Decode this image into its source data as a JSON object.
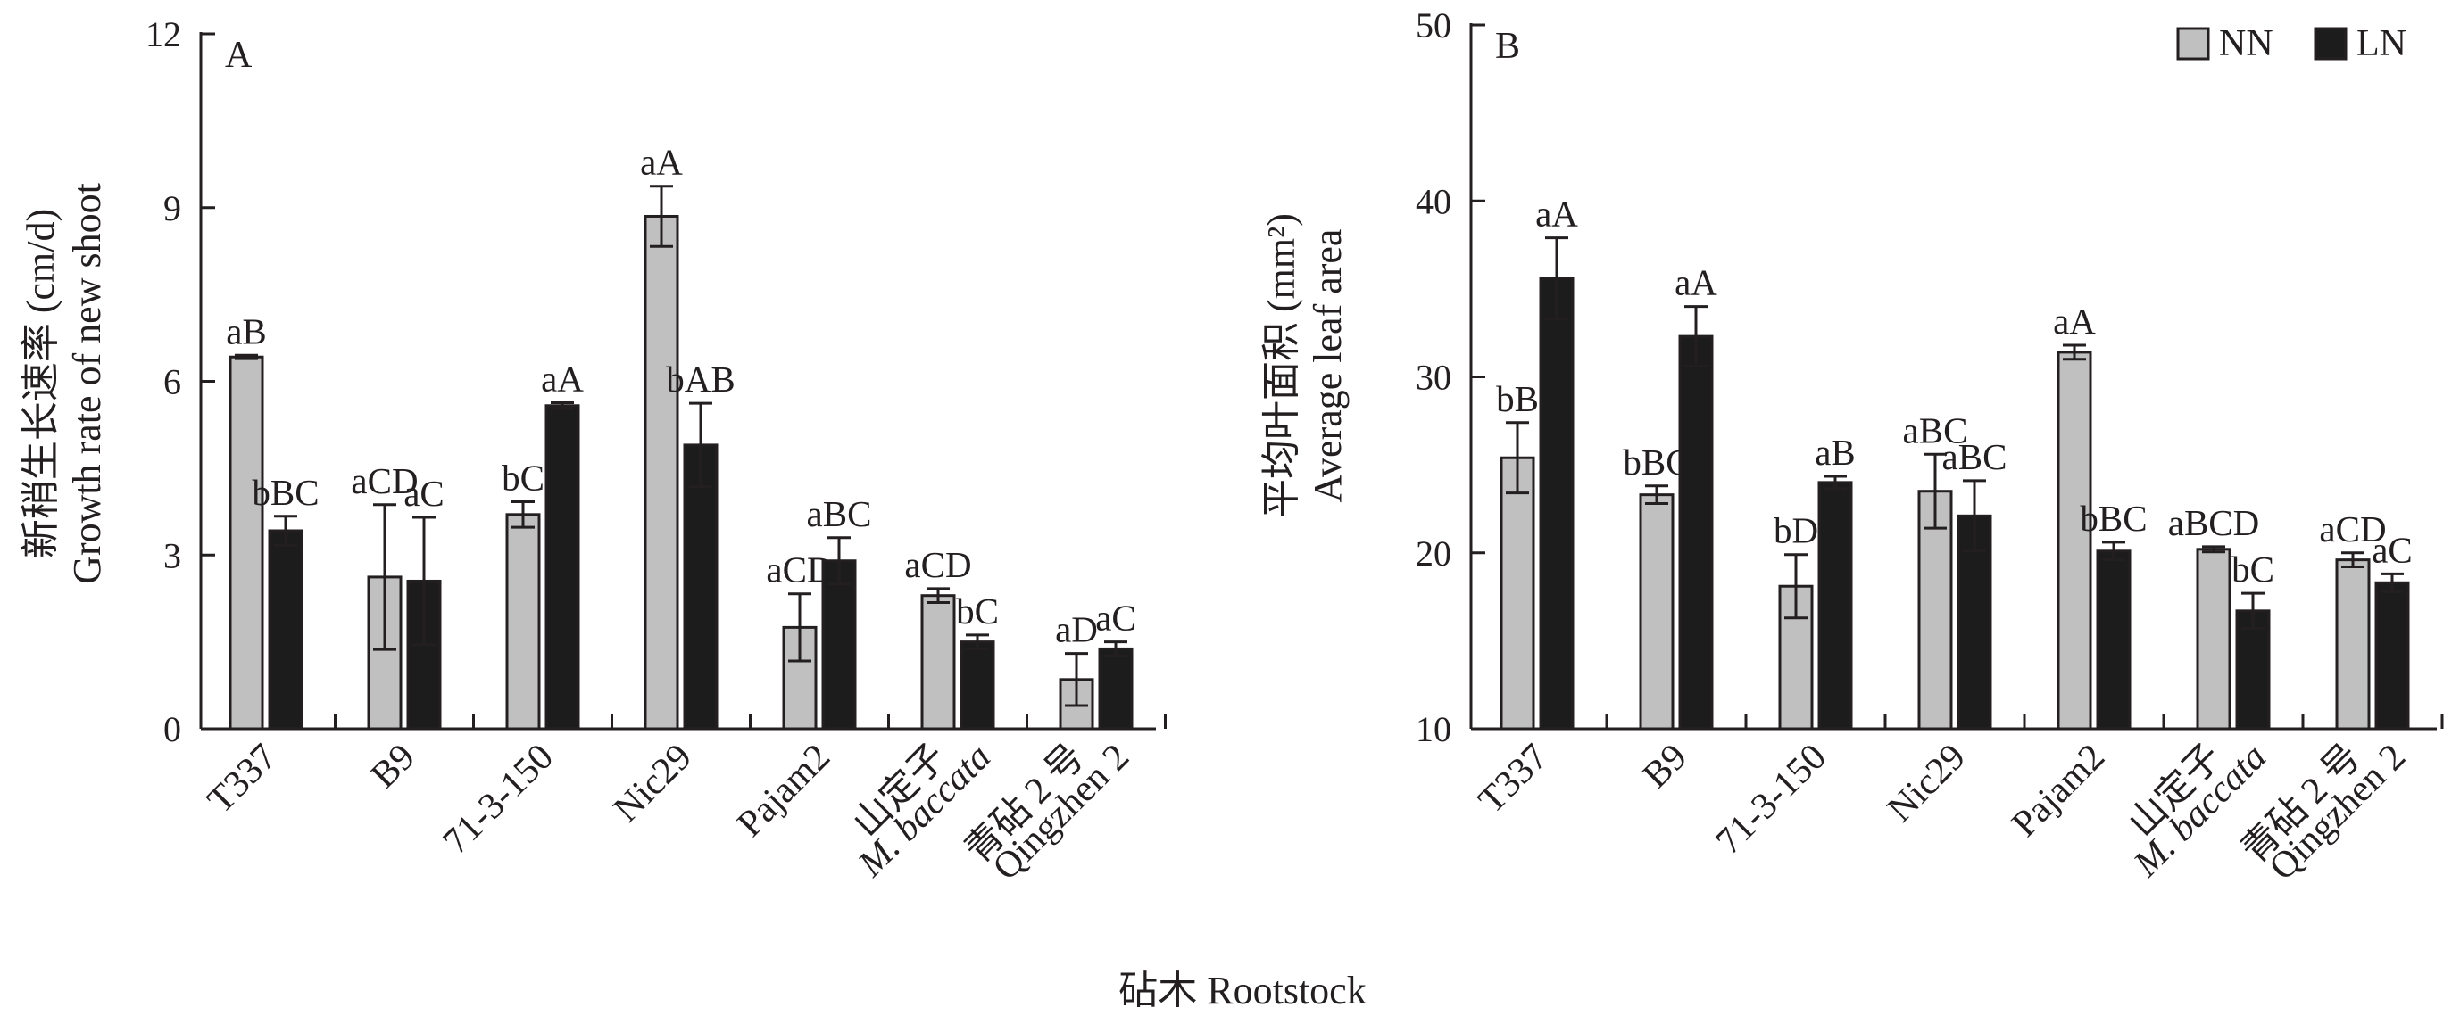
{
  "figure": {
    "xlabel": "砧木 Rootstock",
    "legend": {
      "placement": "top-right",
      "entries": [
        {
          "label": "NN",
          "color": "#c0c0c0"
        },
        {
          "label": "LN",
          "color": "#1c1c1c"
        }
      ]
    },
    "colors": {
      "NN": "#c0c0c0",
      "LN": "#1c1c1c",
      "stroke": "#231f20"
    }
  },
  "chart_data": [
    {
      "type": "bar",
      "panel": "A",
      "ylabel_cn": "新稍生长速率 (cm/d)",
      "ylabel_en": "Growth rate of new shoot",
      "ylim": [
        0,
        12
      ],
      "yticks": [
        "0",
        "3",
        "6",
        "9",
        "12"
      ],
      "categories": [
        {
          "lines": [
            "T337"
          ]
        },
        {
          "lines": [
            "B9"
          ]
        },
        {
          "lines": [
            "71-3-150"
          ]
        },
        {
          "lines": [
            "Nic29"
          ]
        },
        {
          "lines": [
            "Pajam2"
          ]
        },
        {
          "lines": [
            "山定子",
            "M. baccata"
          ]
        },
        {
          "lines": [
            "青砧 2 号",
            "Qingzhen 2"
          ]
        }
      ],
      "series": [
        {
          "name": "NN",
          "values": [
            6.42,
            2.62,
            3.7,
            8.85,
            1.75,
            2.3,
            0.85
          ],
          "errors": [
            0.03,
            1.25,
            0.22,
            0.52,
            0.58,
            0.12,
            0.45
          ],
          "labels": [
            "aB",
            "aCD",
            "bC",
            "aA",
            "aCD",
            "aCD",
            "aD"
          ]
        },
        {
          "name": "LN",
          "values": [
            3.42,
            2.55,
            5.58,
            4.9,
            2.9,
            1.5,
            1.38
          ],
          "errors": [
            0.25,
            1.1,
            0.05,
            0.72,
            0.4,
            0.12,
            0.12
          ],
          "labels": [
            "bBC",
            "aC",
            "aA",
            "bAB",
            "aBC",
            "bC",
            "aC"
          ]
        }
      ]
    },
    {
      "type": "bar",
      "panel": "B",
      "ylabel_cn": "平均叶面积 (mm²)",
      "ylabel_en": "Average leaf area",
      "ylim": [
        10,
        50
      ],
      "yticks": [
        "10",
        "20",
        "30",
        "40",
        "50"
      ],
      "categories": [
        {
          "lines": [
            "T337"
          ]
        },
        {
          "lines": [
            "B9"
          ]
        },
        {
          "lines": [
            "71-3-150"
          ]
        },
        {
          "lines": [
            "Nic29"
          ]
        },
        {
          "lines": [
            "Pajam2"
          ]
        },
        {
          "lines": [
            "山定子",
            "M. baccata"
          ]
        },
        {
          "lines": [
            "青砧 2 号",
            "Qingzhen 2"
          ]
        }
      ],
      "series": [
        {
          "name": "NN",
          "values": [
            25.4,
            23.3,
            18.1,
            23.5,
            31.4,
            20.2,
            19.6
          ],
          "errors": [
            2.0,
            0.5,
            1.8,
            2.1,
            0.4,
            0.15,
            0.4
          ],
          "labels": [
            "bB",
            "bBC",
            "bD",
            "aBC",
            "aA",
            "aBCD",
            "aCD"
          ]
        },
        {
          "name": "LN",
          "values": [
            35.6,
            32.3,
            24.0,
            22.1,
            20.1,
            16.7,
            18.3
          ],
          "errors": [
            2.3,
            1.7,
            0.35,
            2.0,
            0.5,
            1.0,
            0.5
          ],
          "labels": [
            "aA",
            "aA",
            "aB",
            "aBC",
            "bBC",
            "bC",
            "aC"
          ]
        }
      ]
    }
  ]
}
